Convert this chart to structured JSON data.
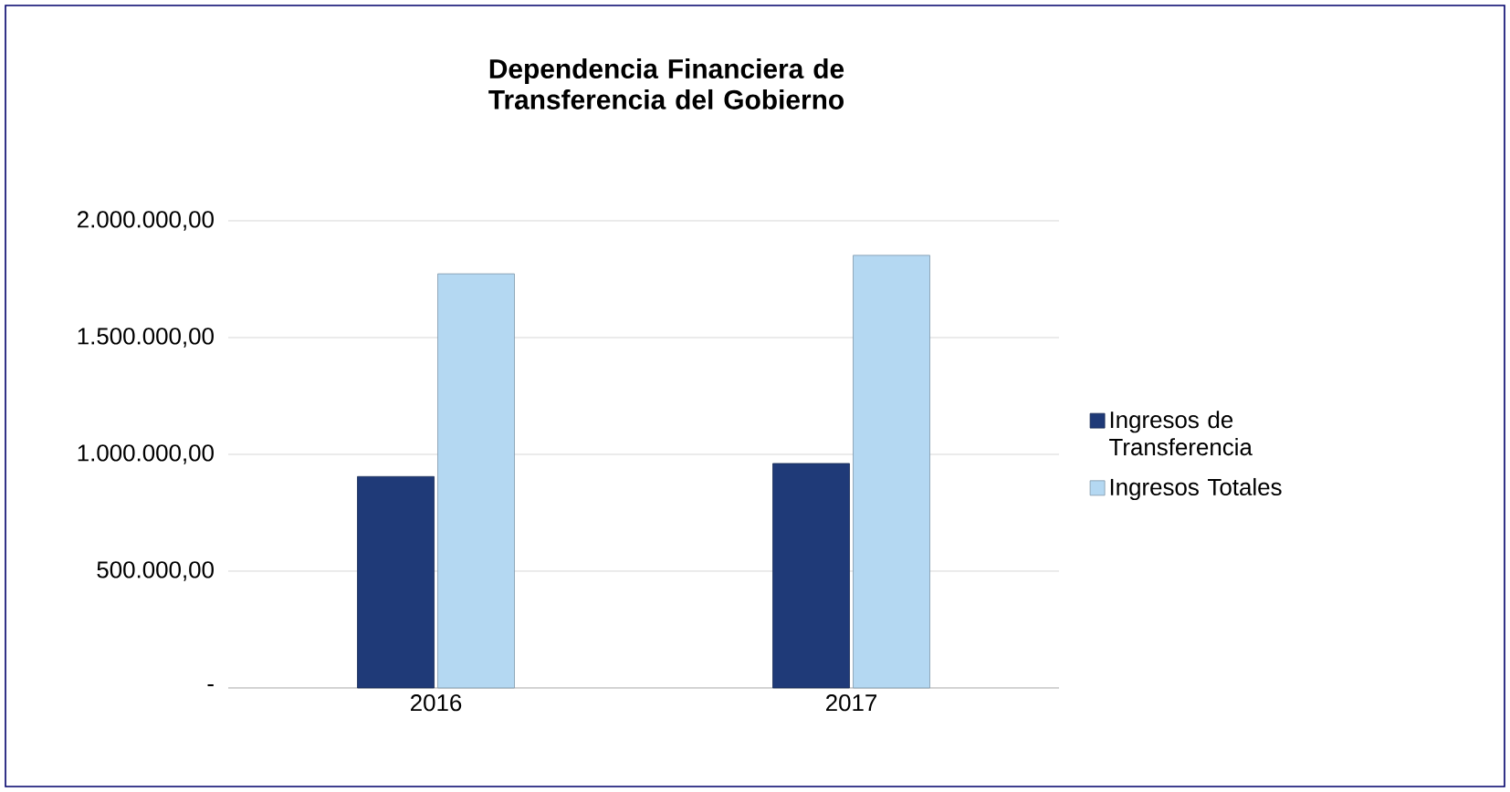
{
  "chart_data": {
    "type": "bar",
    "title": "Dependencia Financiera de Transferencia del Gobierno",
    "categories": [
      "2016",
      "2017"
    ],
    "series": [
      {
        "name": "Ingresos de Transferencia",
        "color": "#1f3a78",
        "values": [
          905000,
          961000
        ]
      },
      {
        "name": "Ingresos Totales",
        "color": "#b4d8f2",
        "values": [
          1773000,
          1852000
        ]
      }
    ],
    "ylim": [
      0,
      2000000
    ],
    "yticks": [
      {
        "value": 0,
        "label": "-"
      },
      {
        "value": 500000,
        "label": "500.000,00"
      },
      {
        "value": 1000000,
        "label": "1.000.000,00"
      },
      {
        "value": 1500000,
        "label": "1.500.000,00"
      },
      {
        "value": 2000000,
        "label": "2.000.000,00"
      }
    ],
    "grid": "y",
    "legend": "right"
  }
}
